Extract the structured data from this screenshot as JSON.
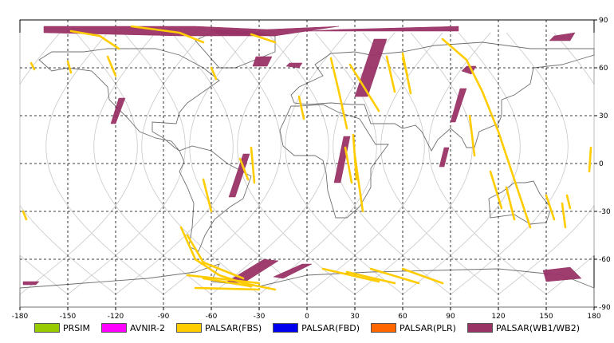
{
  "chart_data": {
    "type": "map",
    "xlim": [
      -180,
      180
    ],
    "ylim": [
      -90,
      90
    ],
    "x_ticks": [
      "-180",
      "-150",
      "-120",
      "-90",
      "-60",
      "-30",
      "0",
      "30",
      "60",
      "90",
      "120",
      "150",
      "180"
    ],
    "y_ticks": [
      "90",
      "60",
      "30",
      "0",
      "-30",
      "-60",
      "-90"
    ],
    "grid": true,
    "legend": [
      {
        "name": "PRSIM",
        "color": "#99cc00"
      },
      {
        "name": "AVNIR-2",
        "color": "#ff00ff"
      },
      {
        "name": "PALSAR(FBS)",
        "color": "#ffcc00"
      },
      {
        "name": "PALSAR(FBD)",
        "color": "#0000ee"
      },
      {
        "name": "PALSAR(PLR)",
        "color": "#ff6600"
      },
      {
        "name": "PALSAR(WB1/WB2)",
        "color": "#993366"
      }
    ],
    "wb_swaths": [
      [
        [
          -165,
          86
        ],
        [
          -70,
          86
        ],
        [
          -25,
          84
        ],
        [
          20,
          86
        ],
        [
          -20,
          80
        ],
        [
          -80,
          80
        ],
        [
          -165,
          82
        ]
      ],
      [
        [
          95,
          86
        ],
        [
          20,
          84
        ],
        [
          0,
          83
        ],
        [
          95,
          83
        ]
      ],
      [
        [
          -60,
          84
        ],
        [
          -35,
          83
        ],
        [
          -20,
          80
        ],
        [
          -55,
          81
        ]
      ],
      [
        [
          -32,
          67
        ],
        [
          -22,
          67
        ],
        [
          -25,
          61
        ],
        [
          -34,
          61
        ]
      ],
      [
        [
          -11,
          63
        ],
        [
          -3,
          63
        ],
        [
          -5,
          60
        ],
        [
          -13,
          61
        ]
      ],
      [
        [
          42,
          78
        ],
        [
          50,
          78
        ],
        [
          38,
          42
        ],
        [
          30,
          42
        ]
      ],
      [
        [
          100,
          61
        ],
        [
          106,
          61
        ],
        [
          103,
          56
        ],
        [
          97,
          58
        ]
      ],
      [
        [
          155,
          80
        ],
        [
          168,
          82
        ],
        [
          165,
          77
        ],
        [
          152,
          77
        ]
      ],
      [
        [
          96,
          47
        ],
        [
          100,
          47
        ],
        [
          93,
          26
        ],
        [
          90,
          26
        ]
      ],
      [
        [
          -118,
          41
        ],
        [
          -114,
          41
        ],
        [
          -120,
          25
        ],
        [
          -123,
          25
        ]
      ],
      [
        [
          -40,
          6
        ],
        [
          -36,
          6
        ],
        [
          -45,
          -21
        ],
        [
          -49,
          -21
        ]
      ],
      [
        [
          23,
          17
        ],
        [
          27,
          17
        ],
        [
          21,
          -12
        ],
        [
          17,
          -12
        ]
      ],
      [
        [
          86,
          10
        ],
        [
          89,
          10
        ],
        [
          86,
          -2
        ],
        [
          83,
          -2
        ]
      ],
      [
        [
          -27,
          -60
        ],
        [
          -18,
          -61
        ],
        [
          -40,
          -75
        ],
        [
          -50,
          -74
        ]
      ],
      [
        [
          -3,
          -63
        ],
        [
          3,
          -63
        ],
        [
          -15,
          -72
        ],
        [
          -21,
          -71
        ]
      ],
      [
        [
          148,
          -67
        ],
        [
          165,
          -65
        ],
        [
          172,
          -72
        ],
        [
          150,
          -74
        ]
      ],
      [
        [
          -178,
          -74
        ],
        [
          -168,
          -74
        ],
        [
          -170,
          -76
        ],
        [
          -178,
          -76
        ]
      ]
    ],
    "fbs_strips": [
      [
        [
          -148,
          83
        ],
        [
          -130,
          80
        ],
        [
          -118,
          72
        ]
      ],
      [
        [
          -110,
          86
        ],
        [
          -80,
          82
        ],
        [
          -65,
          76
        ]
      ],
      [
        [
          -35,
          81
        ],
        [
          -20,
          76
        ]
      ],
      [
        [
          -125,
          67
        ],
        [
          -120,
          55
        ]
      ],
      [
        [
          50,
          67
        ],
        [
          55,
          45
        ]
      ],
      [
        [
          60,
          69
        ],
        [
          65,
          44
        ]
      ],
      [
        [
          85,
          78
        ],
        [
          100,
          65
        ],
        [
          110,
          45
        ],
        [
          120,
          20
        ],
        [
          130,
          -10
        ],
        [
          140,
          -40
        ]
      ],
      [
        [
          15,
          66
        ],
        [
          20,
          45
        ],
        [
          25,
          22
        ]
      ],
      [
        [
          27,
          62
        ],
        [
          45,
          33
        ]
      ],
      [
        [
          -5,
          42
        ],
        [
          -2,
          28
        ]
      ],
      [
        [
          24,
          10
        ],
        [
          28,
          -12
        ]
      ],
      [
        [
          29,
          18
        ],
        [
          31,
          -10
        ]
      ],
      [
        [
          30,
          5
        ],
        [
          35,
          -30
        ]
      ],
      [
        [
          -173,
          63
        ],
        [
          -171,
          59
        ]
      ],
      [
        [
          -150,
          64
        ],
        [
          -148,
          57
        ]
      ],
      [
        [
          -60,
          60
        ],
        [
          -57,
          53
        ]
      ],
      [
        [
          -35,
          10
        ],
        [
          -33,
          -12
        ]
      ],
      [
        [
          -42,
          3
        ],
        [
          -37,
          -10
        ]
      ],
      [
        [
          60,
          66
        ],
        [
          63,
          55
        ]
      ],
      [
        [
          102,
          30
        ],
        [
          105,
          5
        ]
      ],
      [
        [
          115,
          -5
        ],
        [
          122,
          -28
        ]
      ],
      [
        [
          125,
          -15
        ],
        [
          130,
          -35
        ]
      ],
      [
        [
          150,
          -20
        ],
        [
          155,
          -35
        ]
      ],
      [
        [
          160,
          -25
        ],
        [
          162,
          -40
        ]
      ],
      [
        [
          178,
          10
        ],
        [
          177,
          -5
        ]
      ],
      [
        [
          -178,
          -30
        ],
        [
          -176,
          -35
        ]
      ],
      [
        [
          163,
          -20
        ],
        [
          165,
          -28
        ]
      ],
      [
        [
          -65,
          -10
        ],
        [
          -60,
          -30
        ]
      ],
      [
        [
          -79,
          -40
        ],
        [
          -70,
          -60
        ],
        [
          -55,
          -70
        ],
        [
          -40,
          -75
        ],
        [
          -20,
          -79
        ]
      ],
      [
        [
          -75,
          -45
        ],
        [
          -65,
          -62
        ],
        [
          -40,
          -72
        ]
      ],
      [
        [
          -75,
          -70
        ],
        [
          -30,
          -75
        ]
      ],
      [
        [
          -65,
          -72
        ],
        [
          -35,
          -77
        ]
      ],
      [
        [
          10,
          -66
        ],
        [
          45,
          -74
        ]
      ],
      [
        [
          25,
          -68
        ],
        [
          55,
          -75
        ]
      ],
      [
        [
          40,
          -66
        ],
        [
          70,
          -75
        ]
      ],
      [
        [
          60,
          -66
        ],
        [
          85,
          -75
        ]
      ],
      [
        [
          -70,
          -78
        ],
        [
          -30,
          -79
        ]
      ]
    ]
  }
}
